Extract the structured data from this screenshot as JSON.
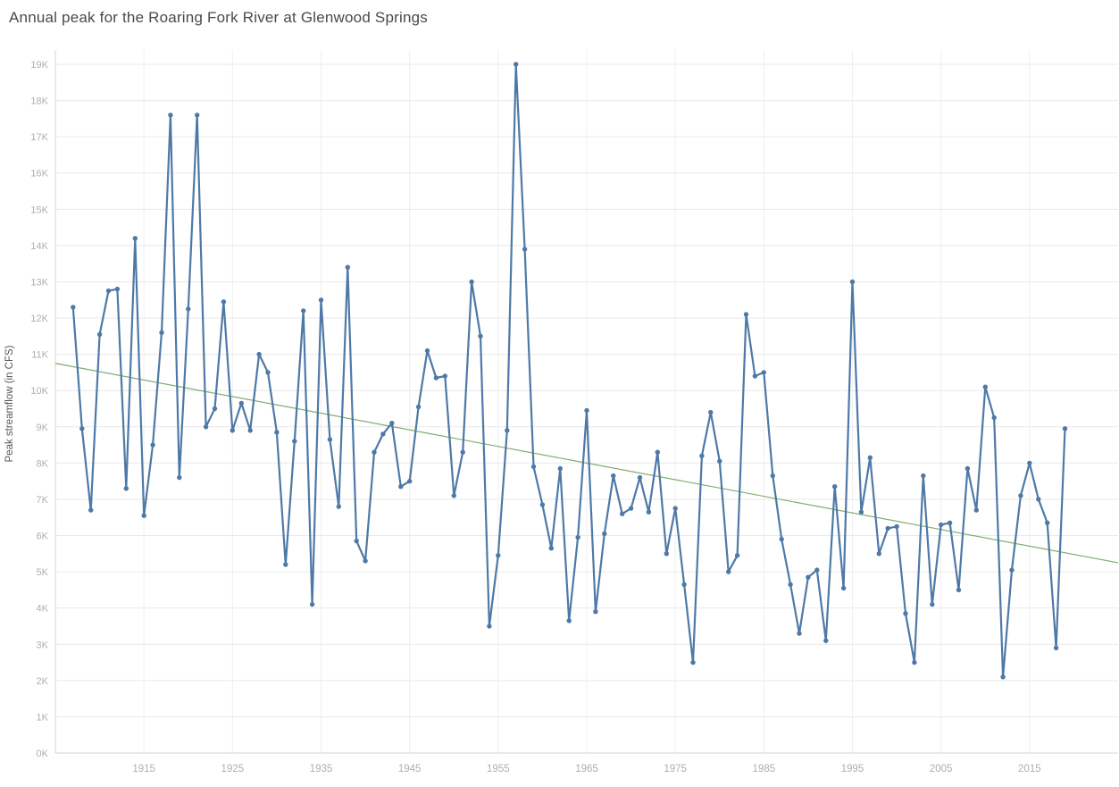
{
  "chart_data": {
    "type": "line",
    "title": "Annual peak for the Roaring Fork River at Glenwood Springs",
    "ylabel": "Peak streamflow (in CFS)",
    "xlabel": "",
    "x": [
      1907,
      1908,
      1909,
      1910,
      1911,
      1912,
      1913,
      1914,
      1915,
      1916,
      1917,
      1918,
      1919,
      1920,
      1921,
      1922,
      1923,
      1924,
      1925,
      1926,
      1927,
      1928,
      1929,
      1930,
      1931,
      1932,
      1933,
      1934,
      1935,
      1936,
      1937,
      1938,
      1939,
      1940,
      1941,
      1942,
      1943,
      1944,
      1945,
      1946,
      1947,
      1948,
      1949,
      1950,
      1951,
      1952,
      1953,
      1954,
      1955,
      1956,
      1957,
      1958,
      1959,
      1960,
      1961,
      1962,
      1963,
      1964,
      1965,
      1966,
      1967,
      1968,
      1969,
      1970,
      1971,
      1972,
      1973,
      1974,
      1975,
      1976,
      1977,
      1978,
      1979,
      1980,
      1981,
      1982,
      1983,
      1984,
      1985,
      1986,
      1987,
      1988,
      1989,
      1990,
      1991,
      1992,
      1993,
      1994,
      1995,
      1996,
      1997,
      1998,
      1999,
      2000,
      2001,
      2002,
      2003,
      2004,
      2005,
      2006,
      2007,
      2008,
      2009,
      2010,
      2011,
      2012,
      2013,
      2014,
      2015,
      2016,
      2017,
      2018,
      2019
    ],
    "series": [
      {
        "name": "Annual peak streamflow",
        "color": "#4e79a7",
        "values": [
          12300,
          8950,
          6700,
          11550,
          12750,
          12800,
          7300,
          14200,
          6550,
          8500,
          11600,
          17600,
          7600,
          12250,
          17600,
          9000,
          9500,
          12450,
          8900,
          9650,
          8900,
          11000,
          10500,
          8850,
          5200,
          8600,
          12200,
          4100,
          12500,
          8650,
          6800,
          13400,
          5850,
          5300,
          8300,
          8800,
          9100,
          7350,
          7500,
          9550,
          11100,
          10350,
          10400,
          7100,
          8300,
          13000,
          11500,
          3500,
          5450,
          8900,
          19000,
          13900,
          7900,
          6850,
          5650,
          7850,
          3650,
          5950,
          9450,
          3900,
          6050,
          7650,
          6600,
          6750,
          7600,
          6650,
          8300,
          5500,
          6750,
          4650,
          2500,
          8200,
          9400,
          8050,
          5000,
          5450,
          12100,
          10400,
          10500,
          7650,
          5900,
          4650,
          3300,
          4850,
          5050,
          3100,
          7350,
          4550,
          13000,
          6650,
          8150,
          5500,
          6200,
          6250,
          3850,
          2500,
          7650,
          4100,
          6300,
          6350,
          4500,
          7850,
          6700,
          10100,
          9250,
          2100,
          5050,
          7100,
          8000,
          7000,
          6350,
          2900,
          8950
        ]
      }
    ],
    "trend": {
      "name": "Trend line",
      "color": "#6a9e58",
      "x": [
        1905,
        2025
      ],
      "values": [
        10750,
        5250
      ]
    },
    "x_ticks": [
      1915,
      1925,
      1935,
      1945,
      1955,
      1965,
      1975,
      1985,
      1995,
      2005,
      2015
    ],
    "y_ticks": [
      "0K",
      "1K",
      "2K",
      "3K",
      "4K",
      "5K",
      "6K",
      "7K",
      "8K",
      "9K",
      "10K",
      "11K",
      "12K",
      "13K",
      "14K",
      "15K",
      "16K",
      "17K",
      "18K",
      "19K"
    ],
    "xlim": [
      1905,
      2025
    ],
    "ylim": [
      0,
      19000
    ],
    "grid": true,
    "legend": "none",
    "marker": "circle",
    "colors": {
      "line": "#4e79a7",
      "trend": "#6a9e58",
      "gridline": "#e9e9e9",
      "vertical_gridline": "#f0f0f0",
      "axis_line": "#d6d6d6",
      "tick_label": "#b2aeaa",
      "title_text": "#4c4945"
    }
  }
}
